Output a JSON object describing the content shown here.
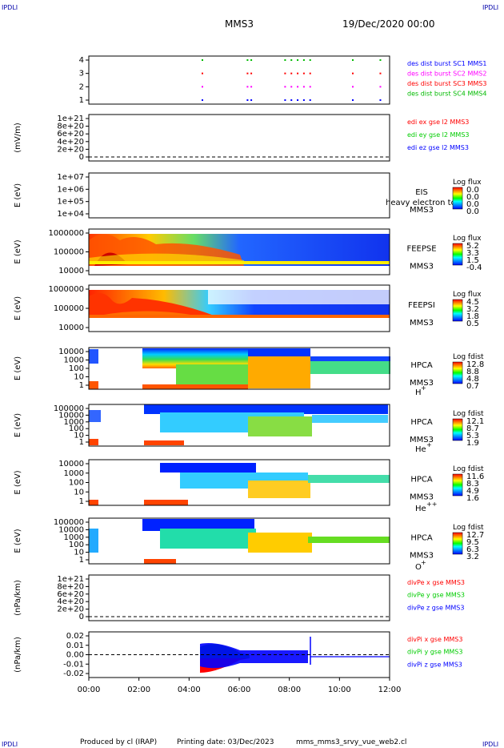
{
  "corners": {
    "tl": "IPDLI",
    "tr": "IPDLI",
    "bl": "IPDLI",
    "br": "IPDLI"
  },
  "header": {
    "title": "MMS3",
    "date": "19/Dec/2020 00:00"
  },
  "footer": {
    "produced": "Produced by cl (IRAP)",
    "printing": "Printing date: 03/Dec/2023",
    "file": "mms_mms3_srvy_vue_web2.cl"
  },
  "colors": {
    "mms1": "#0000ff",
    "mms2": "#ff00ff",
    "mms3": "#ff0000",
    "mms4": "#00bb00",
    "x": "#ff0000",
    "y": "#00cc00",
    "z": "#0000ff"
  },
  "chart_data": {
    "type": "multi-panel time series",
    "xticks": [
      "00:00",
      "02:00",
      "04:00",
      "06:00",
      "08:00",
      "10:00",
      "12:00"
    ],
    "xrange_hours": [
      0,
      12
    ],
    "panels": [
      {
        "id": "burst",
        "ylabel": "",
        "yticks": [
          "4",
          "3",
          "2",
          "1"
        ],
        "legend": [
          {
            "text": "des dist burst SC1 MMS1",
            "color": "#0000ff"
          },
          {
            "text": "des dist burst SC2 MMS2",
            "color": "#ff00ff"
          },
          {
            "text": "des dist burst SC3 MMS3",
            "color": "#ff0000"
          },
          {
            "text": "des dist burst SC4 MMS4",
            "color": "#00bb00"
          }
        ],
        "bursts_hours": [
          4.5,
          6.3,
          6.45,
          7.8,
          8.05,
          8.3,
          8.55,
          8.8,
          10.5,
          11.6
        ]
      },
      {
        "id": "edi",
        "ylabel": "(mV/m)",
        "yticks": [
          "1e+21",
          "8e+20",
          "6e+20",
          "4e+20",
          "2e+20",
          "0"
        ],
        "legend": [
          {
            "text": "edi ex gse l2 MMS3",
            "color": "#ff0000"
          },
          {
            "text": "edi ey gse l2 MMS3",
            "color": "#00cc00"
          },
          {
            "text": "edi ez gse l2 MMS3",
            "color": "#0000ff"
          }
        ]
      },
      {
        "id": "eis",
        "ylabel": "E (eV)",
        "yticks": [
          "1e+07",
          "1e+06",
          "1e+05",
          "1e+04"
        ],
        "side": [
          "EIS",
          "MMS3"
        ],
        "overlay": "heavy electron to",
        "cb_title": "Log flux",
        "cb_labels": [
          "0.0",
          "0.0",
          "0.0",
          "0.0"
        ]
      },
      {
        "id": "feepse",
        "ylabel": "E (eV)",
        "yticks": [
          "1000000",
          "100000",
          "10000"
        ],
        "side": [
          "FEEPSE",
          "MMS3"
        ],
        "cb_title": "Log flux",
        "cb_labels": [
          "5.2",
          "3.3",
          "1.5",
          "-0.4"
        ]
      },
      {
        "id": "feepsi",
        "ylabel": "E (eV)",
        "yticks": [
          "1000000",
          "100000",
          "10000"
        ],
        "side": [
          "FEEPSI",
          "MMS3"
        ],
        "cb_title": "Log flux",
        "cb_labels": [
          "4.5",
          "3.2",
          "1.8",
          "0.5"
        ]
      },
      {
        "id": "hpca-h",
        "ylabel": "E (eV)",
        "yticks": [
          "10000",
          "1000",
          "100",
          "10",
          "1"
        ],
        "side": [
          "HPCA",
          "MMS3"
        ],
        "species": "H",
        "charge": "+",
        "cb_title": "Log fdist",
        "cb_labels": [
          "12.8",
          "8.8",
          "4.8",
          "0.7"
        ]
      },
      {
        "id": "hpca-he",
        "ylabel": "E (eV)",
        "yticks": [
          "100000",
          "10000",
          "1000",
          "100",
          "10",
          "1"
        ],
        "side": [
          "HPCA",
          "MMS3"
        ],
        "species": "He",
        "charge": "+",
        "cb_title": "Log fdist",
        "cb_labels": [
          "12.1",
          "8.7",
          "5.3",
          "1.9"
        ]
      },
      {
        "id": "hpca-hepp",
        "ylabel": "E (eV)",
        "yticks": [
          "10000",
          "1000",
          "100",
          "10",
          "1"
        ],
        "side": [
          "HPCA",
          "MMS3"
        ],
        "species": "He",
        "charge": "++",
        "cb_title": "Log fdist",
        "cb_labels": [
          "11.6",
          "8.3",
          "4.9",
          "1.6"
        ]
      },
      {
        "id": "hpca-o",
        "ylabel": "E (eV)",
        "yticks": [
          "100000",
          "10000",
          "1000",
          "100",
          "10",
          "1"
        ],
        "side": [
          "HPCA",
          "MMS3"
        ],
        "species": "O",
        "charge": "+",
        "cb_title": "Log fdist",
        "cb_labels": [
          "12.7",
          "9.5",
          "6.3",
          "3.2"
        ]
      },
      {
        "id": "divpe",
        "ylabel": "(nPa/km)",
        "yticks": [
          "1e+21",
          "8e+20",
          "6e+20",
          "4e+20",
          "2e+20",
          "0"
        ],
        "legend": [
          {
            "text": "divPe x gse MMS3",
            "color": "#ff0000"
          },
          {
            "text": "divPe y gse MMS3",
            "color": "#00cc00"
          },
          {
            "text": "divPe z gse MMS3",
            "color": "#0000ff"
          }
        ]
      },
      {
        "id": "divpi",
        "ylabel": "(nPa/km)",
        "yticks": [
          "0.02",
          "0.01",
          "0.00",
          "-0.01",
          "-0.02"
        ],
        "ylim": [
          -0.025,
          0.025
        ],
        "legend": [
          {
            "text": "divPi x gse MMS3",
            "color": "#ff0000"
          },
          {
            "text": "divPi y gse MMS3",
            "color": "#00cc00"
          },
          {
            "text": "divPi z gse MMS3",
            "color": "#0000ff"
          }
        ]
      }
    ]
  }
}
